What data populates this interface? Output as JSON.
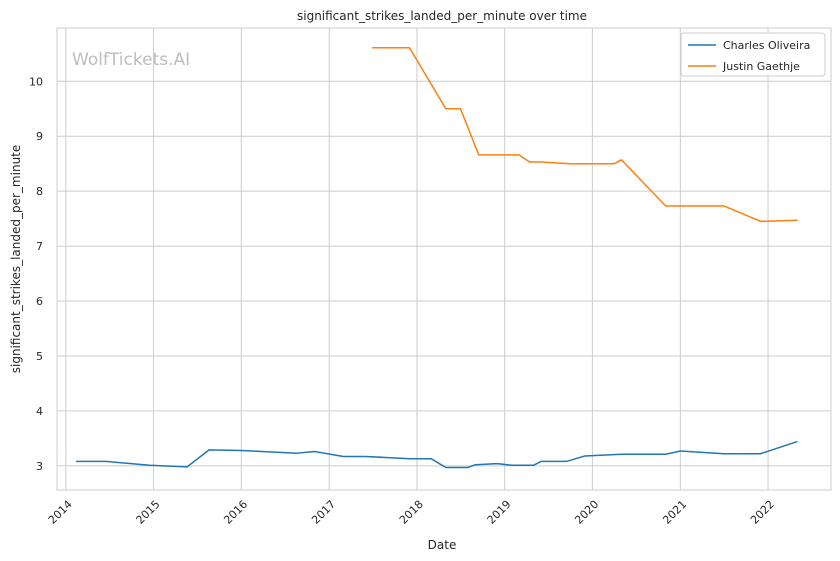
{
  "chart_data": {
    "type": "line",
    "title": "significant_strikes_landed_per_minute over time",
    "xlabel": "Date",
    "ylabel": "significant_strikes_landed_per_minute",
    "watermark": "WolfTickets.AI",
    "x_ticks": [
      "2014",
      "2015",
      "2016",
      "2017",
      "2018",
      "2019",
      "2020",
      "2021",
      "2022"
    ],
    "y_ticks": [
      3,
      4,
      5,
      6,
      7,
      8,
      9,
      10
    ],
    "xlim": [
      "2013-11-25",
      "2022-09-20"
    ],
    "ylim": [
      2.56,
      10.97
    ],
    "grid": true,
    "legend_position": "top-right",
    "colors": {
      "Charles Oliveira": "#1f77b4",
      "Justin Gaethje": "#ff7f0e"
    },
    "series": [
      {
        "name": "Charles Oliveira",
        "points": [
          [
            "2014-02-15",
            3.08
          ],
          [
            "2014-06-15",
            3.08
          ],
          [
            "2014-12-15",
            3.01
          ],
          [
            "2015-05-20",
            2.98
          ],
          [
            "2015-08-20",
            3.29
          ],
          [
            "2016-01-01",
            3.28
          ],
          [
            "2016-08-20",
            3.23
          ],
          [
            "2016-11-01",
            3.26
          ],
          [
            "2017-03-01",
            3.17
          ],
          [
            "2017-06-01",
            3.17
          ],
          [
            "2017-12-01",
            3.13
          ],
          [
            "2018-03-01",
            3.13
          ],
          [
            "2018-05-01",
            2.97
          ],
          [
            "2018-08-01",
            2.97
          ],
          [
            "2018-09-01",
            3.02
          ],
          [
            "2018-12-01",
            3.04
          ],
          [
            "2019-02-01",
            3.01
          ],
          [
            "2019-05-01",
            3.01
          ],
          [
            "2019-06-01",
            3.08
          ],
          [
            "2019-09-15",
            3.08
          ],
          [
            "2019-12-01",
            3.18
          ],
          [
            "2020-05-01",
            3.21
          ],
          [
            "2020-11-01",
            3.21
          ],
          [
            "2021-01-01",
            3.27
          ],
          [
            "2021-07-01",
            3.22
          ],
          [
            "2021-12-01",
            3.22
          ],
          [
            "2022-05-01",
            3.44
          ]
        ]
      },
      {
        "name": "Justin Gaethje",
        "points": [
          [
            "2017-07-01",
            10.61
          ],
          [
            "2017-12-01",
            10.61
          ],
          [
            "2018-05-01",
            9.5
          ],
          [
            "2018-07-01",
            9.5
          ],
          [
            "2018-09-15",
            8.66
          ],
          [
            "2019-03-01",
            8.66
          ],
          [
            "2019-04-15",
            8.53
          ],
          [
            "2019-06-01",
            8.53
          ],
          [
            "2019-10-01",
            8.5
          ],
          [
            "2020-01-01",
            8.5
          ],
          [
            "2020-04-01",
            8.5
          ],
          [
            "2020-05-01",
            8.57
          ],
          [
            "2020-11-01",
            7.73
          ],
          [
            "2021-07-01",
            7.73
          ],
          [
            "2021-12-01",
            7.45
          ],
          [
            "2022-05-01",
            7.47
          ]
        ]
      }
    ]
  }
}
